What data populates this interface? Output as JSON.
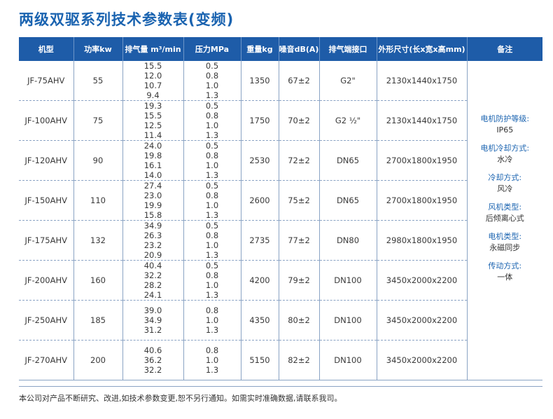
{
  "title": "两级双驱系列技术参数表(变频)",
  "headers": [
    "机型",
    "功率kw",
    "排气量 m³/min",
    "压力MPa",
    "重量kg",
    "噪音dB(A)",
    "排气端接口",
    "外形尺寸(长x宽x高mm)",
    "备注"
  ],
  "rows": [
    {
      "model": "JF-75AHV",
      "power": "55",
      "flow": [
        "15.5",
        "12.0",
        "10.7",
        "9.4"
      ],
      "pressure": [
        "0.5",
        "0.8",
        "1.0",
        "1.3"
      ],
      "weight": "1350",
      "noise": "67±2",
      "port": "G2\"",
      "dims": "2130x1440x1750"
    },
    {
      "model": "JF-100AHV",
      "power": "75",
      "flow": [
        "19.3",
        "15.5",
        "12.5",
        "11.4"
      ],
      "pressure": [
        "0.5",
        "0.8",
        "1.0",
        "1.3"
      ],
      "weight": "1750",
      "noise": "70±2",
      "port": "G2 ½\"",
      "dims": "2130x1440x1750"
    },
    {
      "model": "JF-120AHV",
      "power": "90",
      "flow": [
        "24.0",
        "19.8",
        "16.1",
        "14.0"
      ],
      "pressure": [
        "0.5",
        "0.8",
        "1.0",
        "1.3"
      ],
      "weight": "2530",
      "noise": "72±2",
      "port": "DN65",
      "dims": "2700x1800x1950"
    },
    {
      "model": "JF-150AHV",
      "power": "110",
      "flow": [
        "27.4",
        "23.0",
        "19.9",
        "15.8"
      ],
      "pressure": [
        "0.5",
        "0.8",
        "1.0",
        "1.3"
      ],
      "weight": "2600",
      "noise": "75±2",
      "port": "DN65",
      "dims": "2700x1800x1950"
    },
    {
      "model": "JF-175AHV",
      "power": "132",
      "flow": [
        "34.9",
        "26.3",
        "23.2",
        "20.9"
      ],
      "pressure": [
        "0.5",
        "0.8",
        "1.0",
        "1.3"
      ],
      "weight": "2735",
      "noise": "77±2",
      "port": "DN80",
      "dims": "2980x1800x1950"
    },
    {
      "model": "JF-200AHV",
      "power": "160",
      "flow": [
        "40.4",
        "32.2",
        "28.2",
        "24.1"
      ],
      "pressure": [
        "0.5",
        "0.8",
        "1.0",
        "1.3"
      ],
      "weight": "4200",
      "noise": "79±2",
      "port": "DN100",
      "dims": "3450x2000x2200"
    },
    {
      "model": "JF-250AHV",
      "power": "185",
      "flow": [
        "39.0",
        "34.9",
        "31.2"
      ],
      "pressure": [
        "0.8",
        "1.0",
        "1.3"
      ],
      "weight": "4350",
      "noise": "80±2",
      "port": "DN100",
      "dims": "3450x2000x2200"
    },
    {
      "model": "JF-270AHV",
      "power": "200",
      "flow": [
        "40.6",
        "36.2",
        "32.2"
      ],
      "pressure": [
        "0.8",
        "1.0",
        "1.3"
      ],
      "weight": "5150",
      "noise": "82±2",
      "port": "DN100",
      "dims": "3450x2000x2200"
    }
  ],
  "notes": [
    {
      "label": "电机防护等级:",
      "value": "IP65"
    },
    {
      "label": "电机冷却方式:",
      "value": "水冷"
    },
    {
      "label": "冷却方式:",
      "value": "风冷"
    },
    {
      "label": "风机类型:",
      "value": "后倾离心式"
    },
    {
      "label": "电机类型:",
      "value": "永磁同步"
    },
    {
      "label": "传动方式:",
      "value": "一体"
    }
  ],
  "footer": "本公司对产品不断研究、改进,如技术参数变更,恕不另行通知。如需实时准确数据,请联系我司。"
}
